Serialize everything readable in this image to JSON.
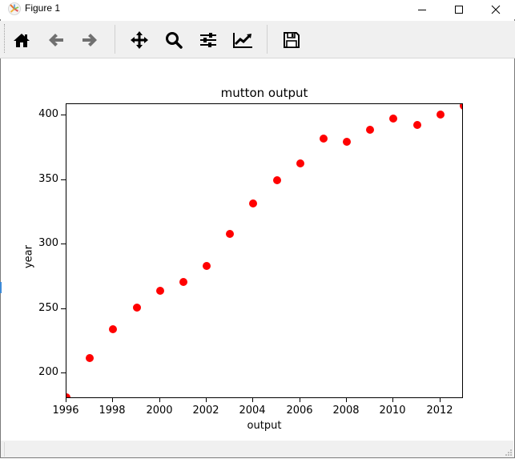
{
  "window": {
    "title": "Figure 1",
    "controls": {
      "minimize": "minimize",
      "maximize": "maximize",
      "close": "close"
    }
  },
  "toolbar": {
    "buttons": [
      {
        "name": "home",
        "icon": "home-icon",
        "tooltip": "Reset original view"
      },
      {
        "name": "back",
        "icon": "arrow-left-icon",
        "tooltip": "Back to previous view"
      },
      {
        "name": "forward",
        "icon": "arrow-right-icon",
        "tooltip": "Forward to next view"
      },
      {
        "name": "pan",
        "icon": "move-icon",
        "tooltip": "Pan axes"
      },
      {
        "name": "zoom",
        "icon": "magnifier-icon",
        "tooltip": "Zoom to rectangle"
      },
      {
        "name": "subplots",
        "icon": "sliders-icon",
        "tooltip": "Configure subplots"
      },
      {
        "name": "edit",
        "icon": "line-chart-icon",
        "tooltip": "Edit axis, curve and image parameters"
      },
      {
        "name": "save",
        "icon": "floppy-disk-icon",
        "tooltip": "Save the figure"
      }
    ]
  },
  "chart_data": {
    "type": "scatter",
    "title": "mutton output",
    "xlabel": "output",
    "ylabel": "year",
    "x": [
      1996,
      1997,
      1998,
      1999,
      2000,
      2001,
      2002,
      2003,
      2004,
      2005,
      2006,
      2007,
      2008,
      2009,
      2010,
      2011,
      2012,
      2013
    ],
    "values": [
      181,
      212,
      234,
      251,
      264,
      271,
      283,
      308,
      332,
      350,
      363,
      382,
      380,
      389,
      398,
      393,
      401,
      408
    ],
    "series": [
      {
        "name": "mutton output",
        "color": "#ff0000",
        "marker": "o",
        "x": [
          1996,
          1997,
          1998,
          1999,
          2000,
          2001,
          2002,
          2003,
          2004,
          2005,
          2006,
          2007,
          2008,
          2009,
          2010,
          2011,
          2012,
          2013
        ],
        "y": [
          181,
          212,
          234,
          251,
          264,
          271,
          283,
          308,
          332,
          350,
          363,
          382,
          380,
          389,
          398,
          393,
          401,
          408
        ]
      }
    ],
    "xlim": [
      1996,
      2013
    ],
    "ylim": [
      180,
      409
    ],
    "xticks": [
      "1996",
      "1998",
      "2000",
      "2002",
      "2004",
      "2006",
      "2008",
      "2010",
      "2012"
    ],
    "yticks": [
      "200",
      "250",
      "300",
      "350",
      "400"
    ],
    "grid": false,
    "legend": null
  }
}
